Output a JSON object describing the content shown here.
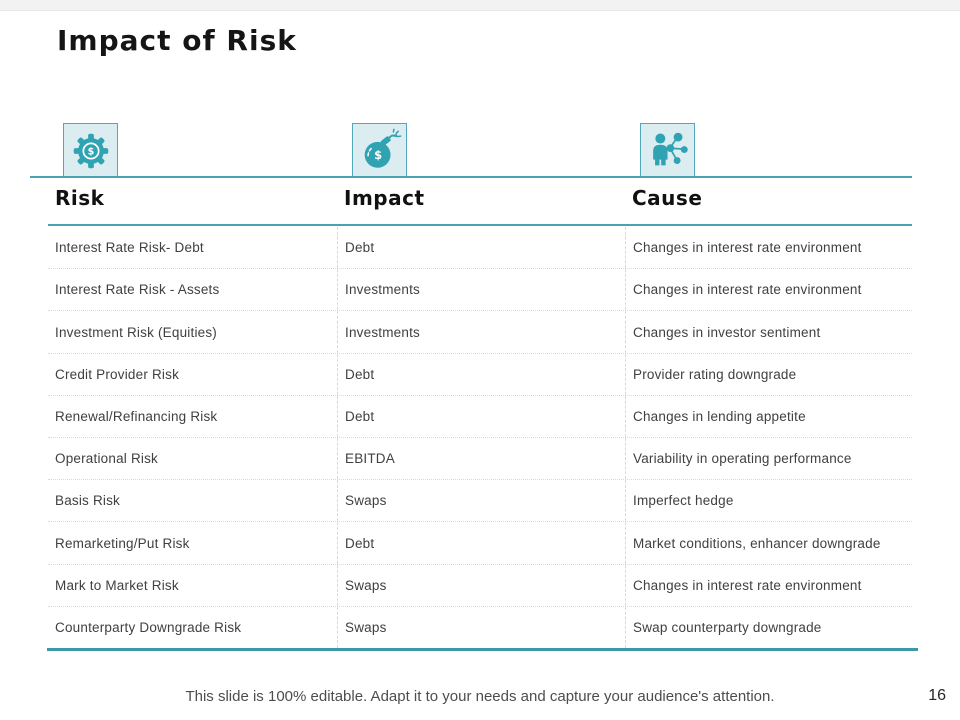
{
  "slide": {
    "title": "Impact of Risk",
    "footer": "This slide is 100% editable. Adapt it to your needs and capture your audience's attention.",
    "page_number": "16"
  },
  "icons": [
    {
      "name": "gear-dollar-icon",
      "meaning": "settings gear with dollar sign"
    },
    {
      "name": "money-bomb-icon",
      "meaning": "bomb with dollar sign"
    },
    {
      "name": "person-network-icon",
      "meaning": "person with connected network nodes"
    }
  ],
  "colors": {
    "accent_teal": "#2fa3b2",
    "icon_box_background": "#dcedf1",
    "icon_box_border": "#4fa9b8",
    "rule_teal": "#4aa2b2",
    "body_text": "#404040",
    "footer_text": "#4d4d4d",
    "top_strip": "#f2f2f2"
  },
  "table": {
    "headers": [
      "Risk",
      "Impact",
      "Cause"
    ],
    "rows": [
      {
        "risk": "Interest Rate Risk- Debt",
        "impact": "Debt",
        "cause": "Changes in interest rate environment"
      },
      {
        "risk": "Interest Rate Risk - Assets",
        "impact": "Investments",
        "cause": "Changes in interest rate environment"
      },
      {
        "risk": "Investment Risk (Equities)",
        "impact": "Investments",
        "cause": "Changes in investor sentiment"
      },
      {
        "risk": "Credit Provider Risk",
        "impact": "Debt",
        "cause": "Provider rating downgrade"
      },
      {
        "risk": "Renewal/Refinancing Risk",
        "impact": "Debt",
        "cause": "Changes in lending appetite"
      },
      {
        "risk": "Operational Risk",
        "impact": "EBITDA",
        "cause": "Variability in operating performance"
      },
      {
        "risk": "Basis Risk",
        "impact": "Swaps",
        "cause": "Imperfect hedge"
      },
      {
        "risk": "Remarketing/Put Risk",
        "impact": "Debt",
        "cause": "Market conditions, enhancer downgrade"
      },
      {
        "risk": "Mark to Market Risk",
        "impact": "Swaps",
        "cause": "Changes in interest rate environment"
      },
      {
        "risk": "Counterparty Downgrade Risk",
        "impact": "Swaps",
        "cause": "Swap counterparty downgrade"
      }
    ]
  }
}
